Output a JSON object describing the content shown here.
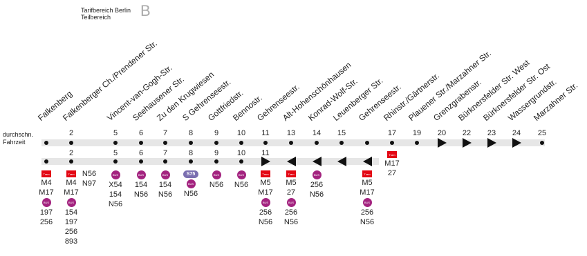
{
  "header": {
    "tarif_line1": "Tarifbereich Berlin",
    "tarif_line2": "Teilbereich",
    "zone": "B"
  },
  "legend": {
    "line1": "durchschn.",
    "line2": "Fahrzeit"
  },
  "stops": [
    {
      "name": "Falkenberg",
      "time_top": "",
      "time_bottom": ""
    },
    {
      "name": "Falkenberger Ch./Prendener Str.",
      "time_top": "2",
      "time_bottom": "2"
    },
    {
      "name": "Vincent-van-Gogh-Str.",
      "time_top": "5",
      "time_bottom": "5"
    },
    {
      "name": "Seehausener Str.",
      "time_top": "6",
      "time_bottom": "6"
    },
    {
      "name": "Zu den Krugwiesen",
      "time_top": "7",
      "time_bottom": "7"
    },
    {
      "name": "S Gehrenseestr.",
      "time_top": "8",
      "time_bottom": "8"
    },
    {
      "name": "Gottfriedstr.",
      "time_top": "9",
      "time_bottom": "9"
    },
    {
      "name": "Bennostr.",
      "time_top": "10",
      "time_bottom": "10"
    },
    {
      "name": "Gehrenseestr.",
      "time_top": "11",
      "time_bottom": "11"
    },
    {
      "name": "Alt-Hohenschönhausen",
      "time_top": "13",
      "time_bottom": ""
    },
    {
      "name": "Konrad-Wolf-Str.",
      "time_top": "14",
      "time_bottom": ""
    },
    {
      "name": "Leuenberger Str.",
      "time_top": "15",
      "time_bottom": ""
    },
    {
      "name": "Gehrenseestr.",
      "time_top": "",
      "time_bottom": ""
    },
    {
      "name": "Rhinstr./Gärtnerstr.",
      "time_top": "17",
      "time_bottom": ""
    },
    {
      "name": "Plauener Str./Marzahner Str.",
      "time_top": "19",
      "time_bottom": ""
    },
    {
      "name": "Grenzgrabenstr.",
      "time_top": "20",
      "time_bottom": ""
    },
    {
      "name": "Bürknersfelder Str. West",
      "time_top": "22",
      "time_bottom": ""
    },
    {
      "name": "Bürknersfelder Str. Ost",
      "time_top": "23",
      "time_bottom": ""
    },
    {
      "name": "Wassergrundstr.",
      "time_top": "24",
      "time_bottom": ""
    },
    {
      "name": "Marzahner Str.",
      "time_top": "25",
      "time_bottom": ""
    }
  ],
  "connections": [
    [
      {
        "t": "tram",
        "label": "Tram"
      },
      {
        "t": "text",
        "label": "M4"
      },
      {
        "t": "text",
        "label": "M17"
      },
      {
        "t": "bus",
        "label": "BUS"
      },
      {
        "t": "text",
        "label": "197"
      },
      {
        "t": "text",
        "label": "256"
      }
    ],
    [
      {
        "t": "tram",
        "label": "Tram"
      },
      {
        "t": "text",
        "label": "M4"
      },
      {
        "t": "text",
        "label": "M17"
      },
      {
        "t": "bus",
        "label": "BUS"
      },
      {
        "t": "text",
        "label": "154"
      },
      {
        "t": "text",
        "label": "197"
      },
      {
        "t": "text",
        "label": "256"
      },
      {
        "t": "text",
        "label": "893"
      }
    ],
    [
      {
        "t": "text",
        "label": "N56"
      },
      {
        "t": "text",
        "label": "N97"
      }
    ],
    [
      {
        "t": "bus",
        "label": "BUS"
      },
      {
        "t": "text",
        "label": "X54"
      },
      {
        "t": "text",
        "label": "154"
      },
      {
        "t": "text",
        "label": "N56"
      }
    ],
    [
      {
        "t": "bus",
        "label": "BUS"
      },
      {
        "t": "text",
        "label": "154"
      },
      {
        "t": "text",
        "label": "N56"
      }
    ],
    [
      {
        "t": "bus",
        "label": "BUS"
      },
      {
        "t": "text",
        "label": "154"
      },
      {
        "t": "text",
        "label": "N56"
      }
    ],
    [
      {
        "t": "sbahn",
        "label": "S75"
      },
      {
        "t": "bus",
        "label": "BUS"
      },
      {
        "t": "text",
        "label": "N56"
      }
    ],
    [
      {
        "t": "bus",
        "label": "BUS"
      },
      {
        "t": "text",
        "label": "N56"
      }
    ],
    [
      {
        "t": "bus",
        "label": "BUS"
      },
      {
        "t": "text",
        "label": "N56"
      }
    ],
    [
      {
        "t": "tram",
        "label": "Tram"
      },
      {
        "t": "text",
        "label": "M5"
      },
      {
        "t": "text",
        "label": "M17"
      },
      {
        "t": "bus",
        "label": "BUS"
      },
      {
        "t": "text",
        "label": "256"
      },
      {
        "t": "text",
        "label": "N56"
      }
    ],
    [
      {
        "t": "tram",
        "label": "Tram"
      },
      {
        "t": "text",
        "label": "M5"
      },
      {
        "t": "text",
        "label": "27"
      },
      {
        "t": "bus",
        "label": "BUS"
      },
      {
        "t": "text",
        "label": "256"
      },
      {
        "t": "text",
        "label": "N56"
      }
    ],
    [
      {
        "t": "bus",
        "label": "BUS"
      },
      {
        "t": "text",
        "label": "256"
      },
      {
        "t": "text",
        "label": "N56"
      }
    ],
    [
      {
        "t": "tram",
        "label": "Tram"
      },
      {
        "t": "text",
        "label": "M5"
      },
      {
        "t": "text",
        "label": "M17"
      },
      {
        "t": "bus",
        "label": "BUS"
      },
      {
        "t": "text",
        "label": "256"
      },
      {
        "t": "text",
        "label": "N56"
      }
    ],
    [
      {
        "t": "tram",
        "label": "Tram"
      },
      {
        "t": "text",
        "label": "M17"
      },
      {
        "t": "text",
        "label": "27"
      }
    ]
  ],
  "colors": {
    "tram": "#e30613",
    "bus": "#a3237f",
    "sbahn": "#7b6fb0",
    "band": "#e6e6e6"
  }
}
